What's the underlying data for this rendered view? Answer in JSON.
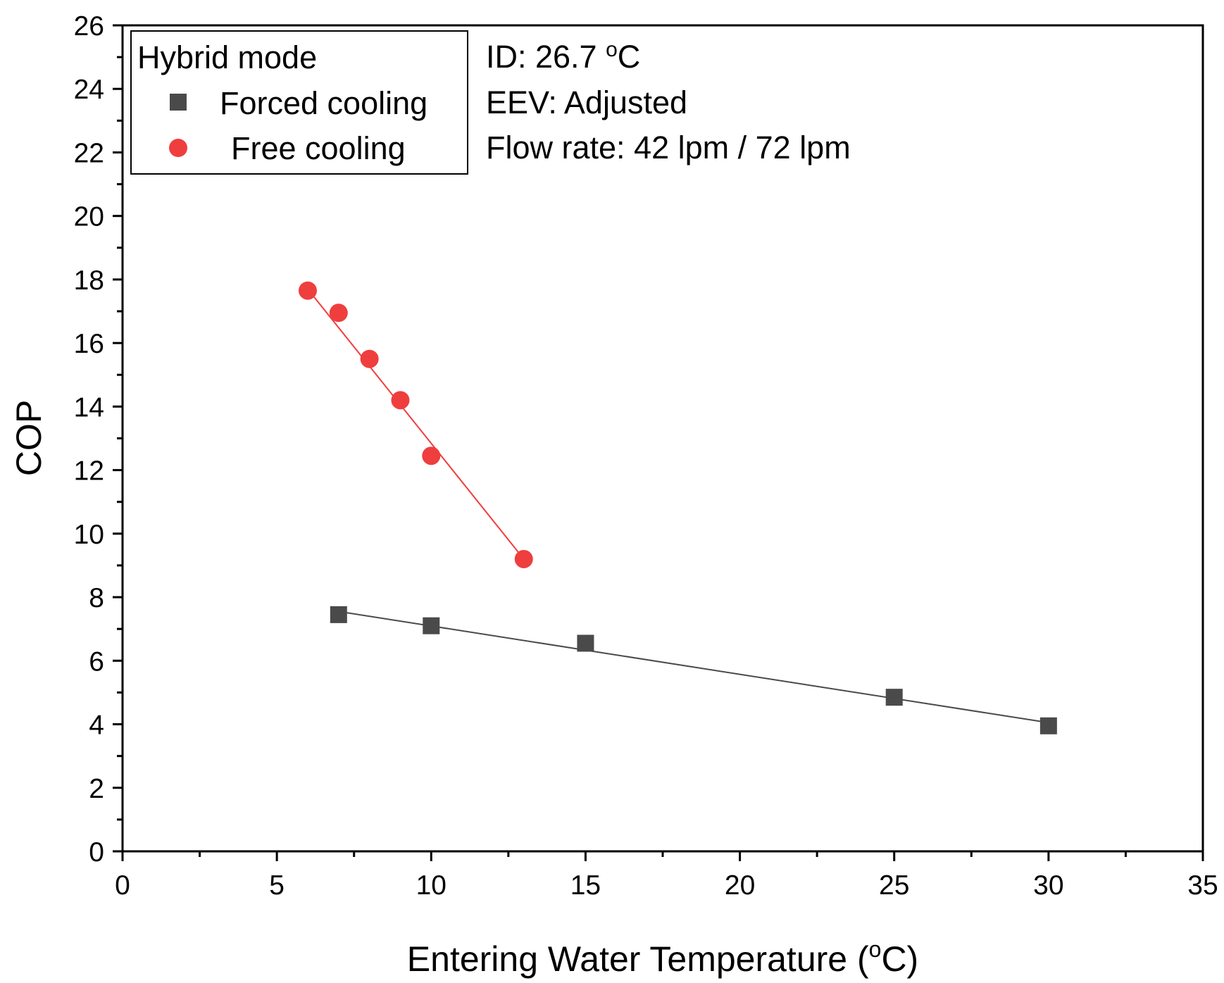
{
  "chart_data": {
    "type": "scatter",
    "xlabel_main": "Entering Water Temperature (",
    "xlabel_sup": "o",
    "xlabel_tail": "C)",
    "ylabel": "COP",
    "xlim": [
      0,
      35
    ],
    "ylim": [
      0,
      26
    ],
    "xticks": [
      0,
      5,
      10,
      15,
      20,
      25,
      30,
      35
    ],
    "yticks": [
      0,
      2,
      4,
      6,
      8,
      10,
      12,
      14,
      16,
      18,
      20,
      22,
      24,
      26
    ],
    "grid": false,
    "legend_position": "top-left",
    "legend_title": "Hybrid mode",
    "series": [
      {
        "name": "Forced cooling",
        "marker": "square",
        "color": "#4a4a4a",
        "x": [
          7,
          10,
          15,
          25,
          30
        ],
        "y": [
          7.45,
          7.1,
          6.55,
          4.85,
          3.95
        ],
        "fit": {
          "x": [
            7,
            30
          ],
          "y": [
            7.55,
            4.05
          ]
        }
      },
      {
        "name": "Free cooling",
        "marker": "circle",
        "color": "#ef3e3e",
        "x": [
          6,
          7,
          8,
          9,
          10,
          13
        ],
        "y": [
          17.65,
          16.95,
          15.5,
          14.2,
          12.45,
          9.2
        ],
        "fit": {
          "x": [
            6,
            13
          ],
          "y": [
            17.7,
            9.2
          ]
        }
      }
    ],
    "annotations": {
      "id_prefix": "ID: 26.7 ",
      "id_sup": "o",
      "id_suffix": "C",
      "eev": "EEV: Adjusted",
      "flow": "Flow rate: 42 lpm / 72 lpm"
    }
  }
}
